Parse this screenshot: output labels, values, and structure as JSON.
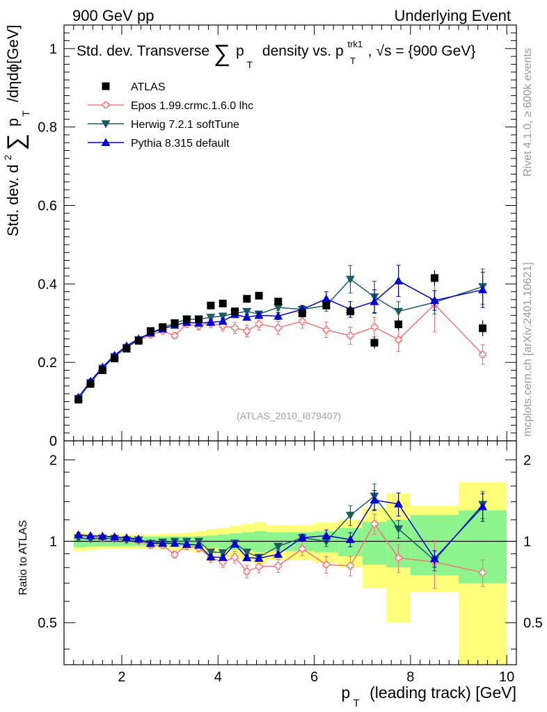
{
  "header": {
    "left": "900 GeV pp",
    "right": "Underlying Event"
  },
  "main_title": {
    "prefix": "Std. dev. Transverse",
    "sum": "∑",
    "p": "p",
    "T": "T",
    "mid": "density vs. p",
    "sup": "trk1",
    "sub": "T",
    "tail": ", √s = {900 GeV}"
  },
  "ylabel": {
    "prefix": "Std. dev. d",
    "sq": "2",
    "sum": "∑",
    "p": "p",
    "T": "T",
    "tail": "/dηdϕ[GeV]"
  },
  "ratio_ylabel": "Ratio to ATLAS",
  "xlabel": {
    "p": "p",
    "T": "T",
    "tail": "(leading track) [GeV]"
  },
  "watermark": "(ATLAS_2010_I879407)",
  "side_text_top": "Rivet 4.1.0, ≥ 600k events",
  "side_text_bottom": "mcplots.cern.ch [arXiv:2401.10621]",
  "legend": [
    {
      "label": "ATLAS",
      "color": "#000000",
      "marker": "square"
    },
    {
      "label": "Epos 1.99.crmc.1.6.0 lhc",
      "color": "#f07878",
      "marker": "open-cross"
    },
    {
      "label": "Herwig 7.2.1 softTune",
      "color": "#1d5c63",
      "marker": "triangle-down"
    },
    {
      "label": "Pythia 8.315 default",
      "color": "#0000cc",
      "marker": "triangle-up"
    }
  ],
  "chart_data": {
    "type": "scatter",
    "xlim": [
      0.8,
      10.2
    ],
    "main_ylim": [
      0.0,
      1.06
    ],
    "main_yticks": [
      0,
      0.2,
      0.4,
      0.6,
      0.8,
      1
    ],
    "main_ytick_labels": [
      "0",
      "0.2",
      "0.4",
      "0.6",
      "0.8",
      "1"
    ],
    "ratio_ylim": [
      0.35,
      2.35
    ],
    "ratio_yticks": [
      0.5,
      1,
      2
    ],
    "ratio_ytick_labels": [
      "0.5",
      "1",
      "2"
    ],
    "xticks": [
      2,
      4,
      6,
      8,
      10
    ],
    "xtick_labels": [
      "2",
      "4",
      "6",
      "8",
      "10"
    ],
    "x": [
      1.1,
      1.35,
      1.6,
      1.85,
      2.1,
      2.35,
      2.6,
      2.85,
      3.1,
      3.35,
      3.6,
      3.85,
      4.1,
      4.35,
      4.6,
      4.85,
      5.25,
      5.75,
      6.25,
      6.75,
      7.25,
      7.75,
      8.5,
      9.5
    ],
    "series": [
      {
        "name": "ATLAS",
        "values": [
          0.105,
          0.145,
          0.18,
          0.21,
          0.235,
          0.255,
          0.28,
          0.29,
          0.3,
          0.31,
          0.31,
          0.345,
          0.35,
          0.33,
          0.362,
          0.37,
          0.355,
          0.325,
          0.345,
          0.33,
          0.25,
          0.297,
          0.415,
          0.287
        ],
        "errors": [
          0.002,
          0.002,
          0.002,
          0.003,
          0.003,
          0.003,
          0.003,
          0.003,
          0.004,
          0.004,
          0.004,
          0.005,
          0.005,
          0.005,
          0.006,
          0.006,
          0.006,
          0.008,
          0.01,
          0.012,
          0.015,
          0.015,
          0.02,
          0.02
        ]
      },
      {
        "name": "Epos 1.99.crmc.1.6.0 lhc",
        "values": [
          0.11,
          0.15,
          0.185,
          0.215,
          0.238,
          0.256,
          0.27,
          0.28,
          0.268,
          0.298,
          0.293,
          0.3,
          0.293,
          0.288,
          0.28,
          0.298,
          0.288,
          0.305,
          0.283,
          0.268,
          0.29,
          0.258,
          0.348,
          0.22
        ],
        "errors": [
          0.003,
          0.003,
          0.003,
          0.004,
          0.004,
          0.005,
          0.006,
          0.007,
          0.008,
          0.009,
          0.01,
          0.012,
          0.013,
          0.014,
          0.015,
          0.015,
          0.016,
          0.018,
          0.02,
          0.022,
          0.025,
          0.03,
          0.07,
          0.025
        ]
      },
      {
        "name": "Herwig 7.2.1 softTune",
        "values": [
          0.108,
          0.148,
          0.185,
          0.215,
          0.238,
          0.258,
          0.275,
          0.288,
          0.3,
          0.31,
          0.31,
          0.315,
          0.318,
          0.325,
          0.33,
          0.323,
          0.34,
          0.335,
          0.345,
          0.412,
          0.367,
          0.33,
          0.353,
          0.393
        ],
        "errors": [
          0.002,
          0.002,
          0.002,
          0.003,
          0.003,
          0.003,
          0.003,
          0.004,
          0.004,
          0.005,
          0.005,
          0.006,
          0.006,
          0.007,
          0.007,
          0.008,
          0.008,
          0.01,
          0.015,
          0.035,
          0.04,
          0.025,
          0.03,
          0.045
        ]
      },
      {
        "name": "Pythia 8.315 default",
        "values": [
          0.111,
          0.152,
          0.188,
          0.218,
          0.242,
          0.26,
          0.275,
          0.285,
          0.295,
          0.302,
          0.3,
          0.302,
          0.305,
          0.322,
          0.315,
          0.32,
          0.318,
          0.335,
          0.362,
          0.335,
          0.355,
          0.408,
          0.358,
          0.385
        ],
        "errors": [
          0.002,
          0.002,
          0.002,
          0.003,
          0.003,
          0.003,
          0.003,
          0.004,
          0.004,
          0.005,
          0.005,
          0.006,
          0.006,
          0.007,
          0.007,
          0.008,
          0.009,
          0.01,
          0.018,
          0.02,
          0.03,
          0.04,
          0.025,
          0.045
        ]
      }
    ],
    "ratio_bands": {
      "x_edges": [
        1.0,
        1.25,
        1.5,
        1.75,
        2.0,
        2.25,
        2.5,
        2.75,
        3.0,
        3.25,
        3.5,
        3.75,
        4.0,
        4.25,
        4.5,
        4.75,
        5.0,
        5.5,
        6.0,
        6.5,
        7.0,
        7.5,
        8.0,
        9.0,
        10.0
      ],
      "green": [
        0.05,
        0.045,
        0.04,
        0.04,
        0.04,
        0.04,
        0.04,
        0.04,
        0.04,
        0.04,
        0.045,
        0.05,
        0.06,
        0.07,
        0.08,
        0.09,
        0.08,
        0.08,
        0.09,
        0.12,
        0.18,
        0.2,
        0.25,
        0.3
      ],
      "yellow": [
        0.08,
        0.07,
        0.06,
        0.06,
        0.06,
        0.06,
        0.06,
        0.065,
        0.07,
        0.075,
        0.09,
        0.11,
        0.12,
        0.14,
        0.16,
        0.18,
        0.15,
        0.15,
        0.17,
        0.2,
        0.33,
        0.5,
        0.35,
        0.65
      ]
    }
  }
}
